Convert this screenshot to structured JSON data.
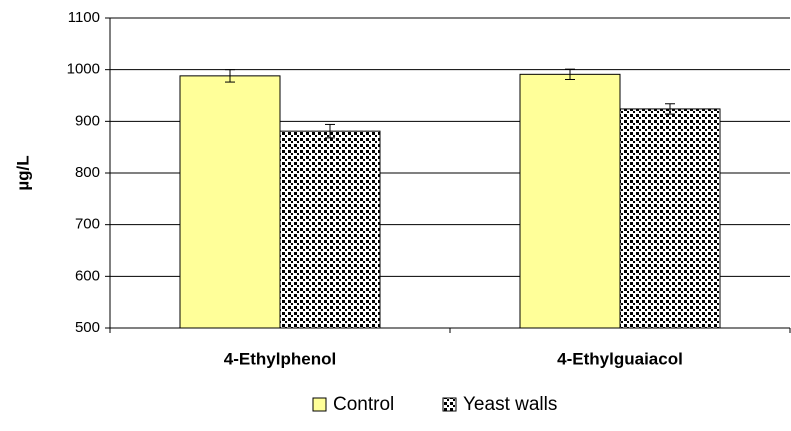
{
  "chart_data": {
    "type": "bar",
    "y_label": "µg/L",
    "categories": [
      "4-Ethylphenol",
      "4-Ethylguaiacol"
    ],
    "series": [
      {
        "name": "Control",
        "color": "#ffff99",
        "values": [
          988,
          991
        ],
        "errors": [
          12,
          10
        ]
      },
      {
        "name": "Yeast walls",
        "color": "#000000",
        "pattern": "dots",
        "values": [
          881,
          924
        ],
        "errors": [
          13,
          10
        ]
      }
    ],
    "ylim": [
      500,
      1100
    ],
    "yticks": [
      500,
      600,
      700,
      800,
      900,
      1000,
      1100
    ],
    "grid": true,
    "legend": "bottom"
  }
}
